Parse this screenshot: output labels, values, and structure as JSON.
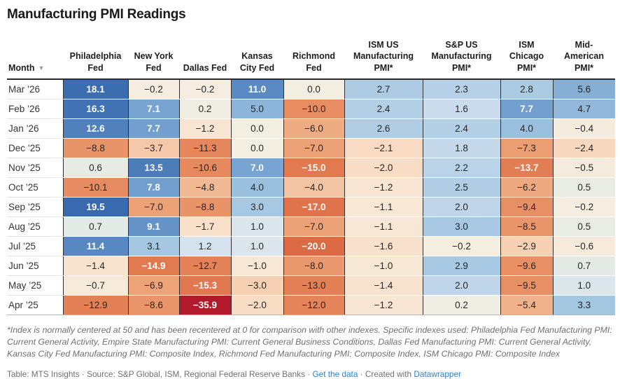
{
  "title": "Manufacturing PMI Readings",
  "chart_data": {
    "type": "heatmap",
    "title": "Manufacturing PMI Readings",
    "row_header": "Month",
    "columns": [
      "Philadelphia Fed",
      "New York Fed",
      "Dallas Fed",
      "Kansas City Fed",
      "Richmond Fed",
      "ISM US Manufacturing PMI*",
      "S&P US Manufacturing PMI*",
      "ISM Chicago PMI*",
      "Mid-American PMI*"
    ],
    "rows": [
      "Mar ’26",
      "Feb ’26",
      "Jan ’26",
      "Dec ’25",
      "Nov ’25",
      "Oct ’25",
      "Sep ’25",
      "Aug ’25",
      "Jul ’25",
      "Jun ’25",
      "May ’25",
      "Apr ’25"
    ],
    "values": [
      [
        18.1,
        -0.2,
        -0.2,
        11.0,
        0.0,
        2.7,
        2.3,
        2.8,
        5.6
      ],
      [
        16.3,
        7.1,
        0.2,
        5.0,
        -10.0,
        2.4,
        1.6,
        7.7,
        4.7
      ],
      [
        12.6,
        7.7,
        -1.2,
        0.0,
        -6.0,
        2.6,
        2.4,
        4.0,
        -0.4
      ],
      [
        -8.8,
        -3.7,
        -11.3,
        0.0,
        -7.0,
        -2.1,
        1.8,
        -7.3,
        -2.4
      ],
      [
        0.6,
        13.5,
        -10.6,
        7.0,
        -15.0,
        -2.0,
        2.2,
        -13.7,
        -0.5
      ],
      [
        -10.1,
        7.8,
        -4.8,
        4.0,
        -4.0,
        -1.2,
        2.5,
        -6.2,
        0.5
      ],
      [
        19.5,
        -7.0,
        -8.8,
        3.0,
        -17.0,
        -1.1,
        2.0,
        -9.4,
        -0.2
      ],
      [
        0.7,
        9.1,
        -1.7,
        1.0,
        -7.0,
        -1.1,
        3.0,
        -8.5,
        0.5
      ],
      [
        11.4,
        3.1,
        1.2,
        1.0,
        -20.0,
        -1.6,
        -0.2,
        -2.9,
        -0.6
      ],
      [
        -1.4,
        -14.9,
        -12.7,
        -1.0,
        -8.0,
        -1.0,
        2.9,
        -9.6,
        0.7
      ],
      [
        -0.7,
        -6.9,
        -15.3,
        -3.0,
        -13.0,
        -1.4,
        2.0,
        -9.5,
        1.0
      ],
      [
        -12.9,
        -8.6,
        -35.9,
        -2.0,
        -12.0,
        -1.2,
        0.2,
        -5.4,
        3.3
      ]
    ],
    "value_range": [
      -35.9,
      19.5
    ],
    "color_scale_stops": [
      [
        -36.0,
        "#b2182b"
      ],
      [
        -26.0,
        "#cd4f42"
      ],
      [
        -20.0,
        "#dc6a44"
      ],
      [
        -16.0,
        "#e1764d"
      ],
      [
        -13.5,
        "#e37e53"
      ],
      [
        -11.0,
        "#e6875d"
      ],
      [
        -9.0,
        "#e99267"
      ],
      [
        -7.5,
        "#eb9c71"
      ],
      [
        -6.0,
        "#efab82"
      ],
      [
        -4.8,
        "#f1b994"
      ],
      [
        -3.7,
        "#f4c8a8"
      ],
      [
        -2.8,
        "#f6d2b6"
      ],
      [
        -2.0,
        "#f8dcc4"
      ],
      [
        -1.4,
        "#f8e3cf"
      ],
      [
        -0.9,
        "#f7e9d8"
      ],
      [
        -0.4,
        "#f5ecdd"
      ],
      [
        -0.1,
        "#f3eee1"
      ],
      [
        0.2,
        "#f0eee2"
      ],
      [
        0.6,
        "#e7ebe3"
      ],
      [
        0.9,
        "#dde7ea"
      ],
      [
        1.2,
        "#d5e3ef"
      ],
      [
        1.7,
        "#c8dbec"
      ],
      [
        2.3,
        "#b6d1e7"
      ],
      [
        3.0,
        "#a6c8e2"
      ],
      [
        4.0,
        "#9bc0de"
      ],
      [
        5.0,
        "#8db5d9"
      ],
      [
        6.0,
        "#81abd4"
      ],
      [
        7.5,
        "#74a1cf"
      ],
      [
        9.0,
        "#6894c8"
      ],
      [
        11.0,
        "#5a8ac3"
      ],
      [
        13.5,
        "#4c7cba"
      ],
      [
        16.0,
        "#4173b5"
      ],
      [
        18.0,
        "#3c6db1"
      ],
      [
        20.0,
        "#3868ad"
      ]
    ],
    "white_text_thresholds": {
      "positive": 6.5,
      "negative": -13.5
    }
  },
  "sort_icon_glyph": "▼",
  "footnote": "*Index is normally centered at 50 and has been recentered at 0 for comparison with other indexes. Specific indexes used: Philadelphia Fed Manufacturing PMI: Current General Activity, Empire State Manufacturing PMI: Current General Business Conditions, Dallas Fed Manufacturing PMI: Current General Activity, Kansas City Fed Manufacturing PMI: Composite Index, Richmond Fed Manufacturing PMI: Composite Index, ISM Chicago PMI: Composite Index",
  "attribution": {
    "prefix": "Table: MTS Insights · Source: S&P Global, ISM, Regional Federal Reserve Banks · ",
    "get_data_label": "Get the data",
    "middle": " · Created with ",
    "datawrapper_label": "Datawrapper",
    "link_color": "#2a83cf"
  }
}
